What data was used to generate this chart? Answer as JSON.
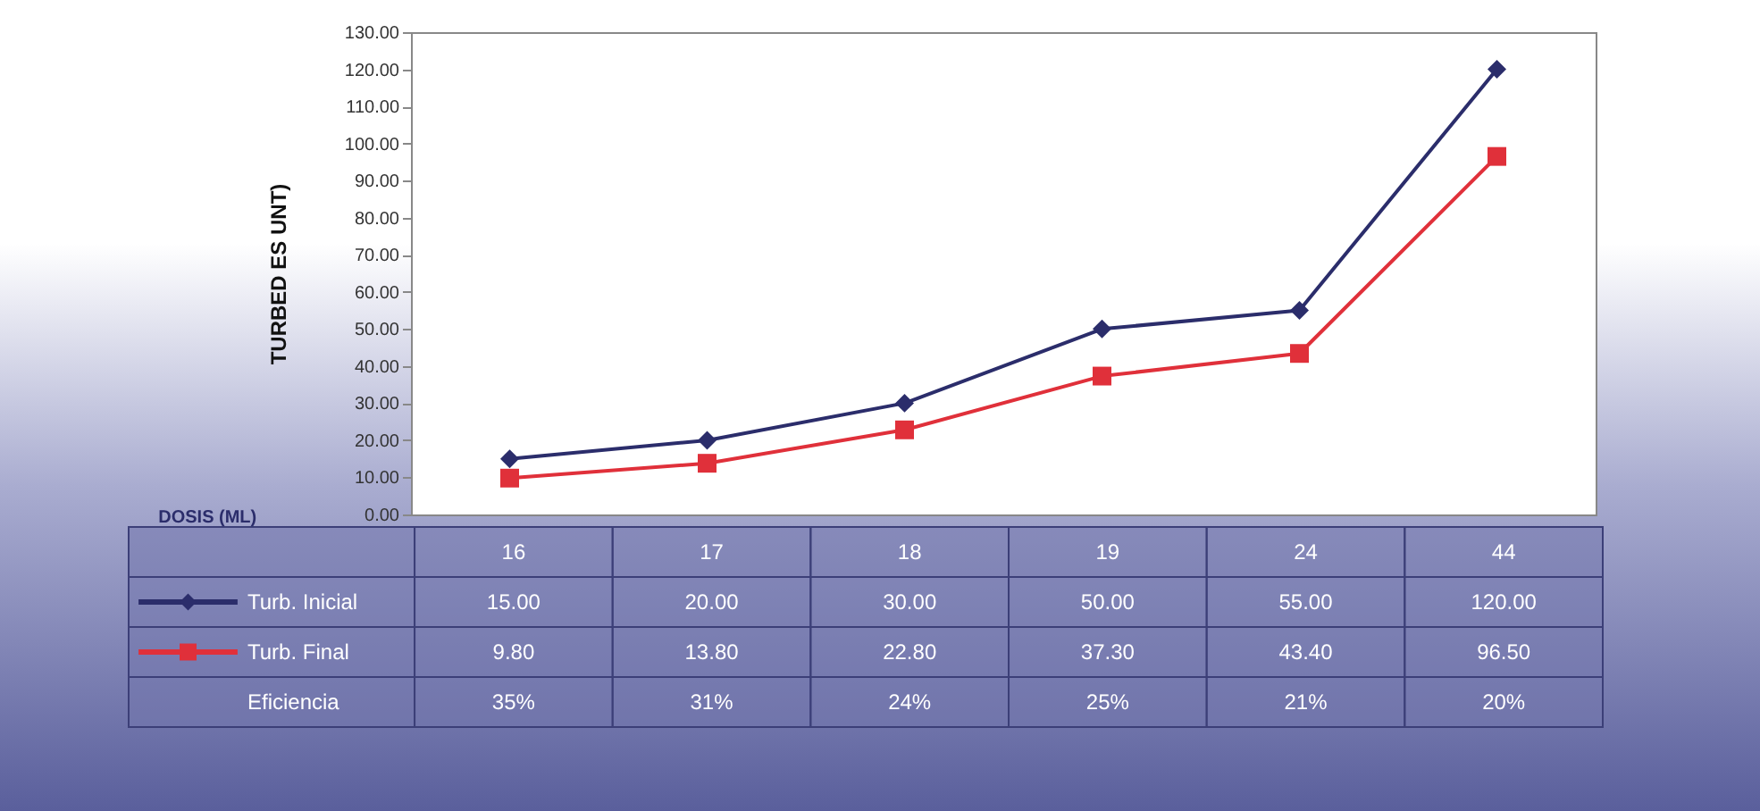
{
  "chart_data": {
    "type": "line",
    "ylabel": "TURBED ES UNT)",
    "xlabel": "DOSIS (ML)",
    "categories": [
      "16",
      "17",
      "18",
      "19",
      "24",
      "44"
    ],
    "series": [
      {
        "name": "Turb. Inicial",
        "color": "#2b2d6b",
        "marker": "diamond",
        "values": [
          15.0,
          20.0,
          30.0,
          50.0,
          55.0,
          120.0
        ],
        "value_labels": [
          "15.00",
          "20.00",
          "30.00",
          "50.00",
          "55.00",
          "120.00"
        ]
      },
      {
        "name": "Turb. Final",
        "color": "#e0303a",
        "marker": "square",
        "values": [
          9.8,
          13.8,
          22.8,
          37.3,
          43.4,
          96.5
        ],
        "value_labels": [
          "9.80",
          "13.80",
          "22.80",
          "37.30",
          "43.40",
          "96.50"
        ]
      }
    ],
    "ylim": [
      0,
      130
    ],
    "yticks": [
      {
        "value": 0,
        "label": "0.00"
      },
      {
        "value": 10,
        "label": "10.00"
      },
      {
        "value": 20,
        "label": "20.00"
      },
      {
        "value": 30,
        "label": "30.00"
      },
      {
        "value": 40,
        "label": "40.00"
      },
      {
        "value": 50,
        "label": "50.00"
      },
      {
        "value": 60,
        "label": "60.00"
      },
      {
        "value": 70,
        "label": "70.00"
      },
      {
        "value": 80,
        "label": "80.00"
      },
      {
        "value": 90,
        "label": "90.00"
      },
      {
        "value": 100,
        "label": "100.00"
      },
      {
        "value": 110,
        "label": "110.00"
      },
      {
        "value": 120,
        "label": "120.00"
      },
      {
        "value": 130,
        "label": "130.00"
      }
    ],
    "legend": "bottom left",
    "grid": false,
    "annotations": [
      "Eficiencia",
      "35%",
      "31%",
      "24%",
      "25%",
      "21%",
      "20%"
    ]
  }
}
